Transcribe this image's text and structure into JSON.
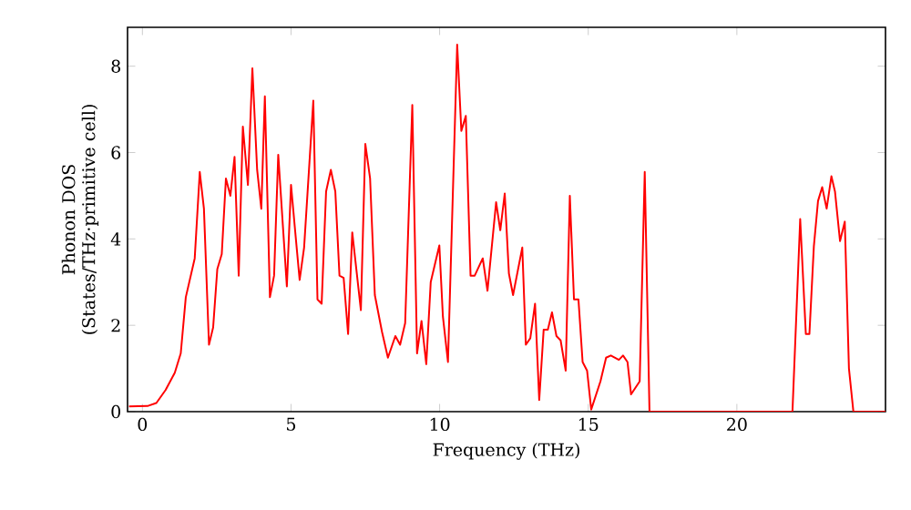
{
  "chart_data": {
    "type": "line",
    "xlabel": "Frequency (THz)",
    "ylabel": "Phonon DOS (States/THz·primitive cell)",
    "xlim": [
      -0.5,
      25
    ],
    "ylim": [
      0,
      8.9
    ],
    "xticks": [
      0,
      5,
      10,
      15,
      20
    ],
    "yticks": [
      0,
      2,
      4,
      6,
      8
    ],
    "grid": false,
    "marker": "none",
    "line_style": "solid",
    "series": [
      {
        "color": "#ff0000",
        "x": [
          -0.45,
          0.17,
          0.47,
          0.78,
          1.09,
          1.29,
          1.46,
          1.76,
          1.93,
          2.07,
          2.24,
          2.38,
          2.52,
          2.67,
          2.81,
          2.96,
          3.1,
          3.24,
          3.38,
          3.55,
          3.7,
          3.86,
          4.0,
          4.12,
          4.29,
          4.43,
          4.57,
          4.86,
          5.0,
          5.15,
          5.29,
          5.44,
          5.75,
          5.89,
          6.03,
          6.18,
          6.34,
          6.49,
          6.63,
          6.77,
          6.92,
          7.06,
          7.35,
          7.5,
          7.66,
          7.82,
          8.06,
          8.26,
          8.51,
          8.67,
          8.84,
          9.08,
          9.24,
          9.39,
          9.55,
          9.7,
          9.99,
          10.11,
          10.28,
          10.59,
          10.73,
          10.88,
          11.04,
          11.18,
          11.45,
          11.61,
          11.9,
          12.04,
          12.19,
          12.33,
          12.47,
          12.78,
          12.9,
          13.05,
          13.21,
          13.35,
          13.5,
          13.64,
          13.78,
          13.93,
          14.07,
          14.24,
          14.38,
          14.52,
          14.67,
          14.81,
          14.96,
          15.1,
          15.41,
          15.6,
          15.76,
          16.03,
          16.17,
          16.32,
          16.44,
          16.73,
          16.9,
          17.06,
          21.87,
          22.13,
          22.32,
          22.44,
          22.59,
          22.73,
          22.87,
          23.02,
          23.18,
          23.3,
          23.47,
          23.63,
          23.77,
          23.92,
          25.0
        ],
        "values": [
          0.12,
          0.13,
          0.2,
          0.5,
          0.9,
          1.35,
          2.65,
          3.55,
          5.55,
          4.7,
          1.55,
          1.95,
          3.3,
          3.65,
          5.4,
          5.0,
          5.9,
          3.15,
          6.6,
          5.25,
          7.95,
          5.6,
          4.7,
          7.3,
          2.65,
          3.15,
          5.95,
          2.9,
          5.25,
          4.1,
          3.05,
          3.8,
          7.2,
          2.6,
          2.5,
          5.1,
          5.6,
          5.1,
          3.15,
          3.1,
          1.8,
          4.15,
          2.35,
          6.2,
          5.4,
          2.7,
          1.85,
          1.25,
          1.75,
          1.55,
          2.05,
          7.1,
          1.35,
          2.1,
          1.1,
          3.0,
          3.85,
          2.2,
          1.15,
          8.5,
          6.5,
          6.85,
          3.15,
          3.15,
          3.55,
          2.8,
          4.85,
          4.2,
          5.05,
          3.2,
          2.7,
          3.8,
          1.55,
          1.7,
          2.5,
          0.27,
          1.9,
          1.9,
          2.3,
          1.75,
          1.65,
          0.95,
          5.0,
          2.6,
          2.6,
          1.15,
          0.95,
          0.05,
          0.7,
          1.25,
          1.3,
          1.2,
          1.3,
          1.15,
          0.4,
          0.7,
          5.55,
          0.0,
          0.0,
          4.46,
          1.8,
          1.8,
          3.83,
          4.88,
          5.2,
          4.7,
          5.45,
          5.1,
          3.95,
          4.4,
          1.0,
          0.0,
          0.0
        ]
      }
    ]
  }
}
